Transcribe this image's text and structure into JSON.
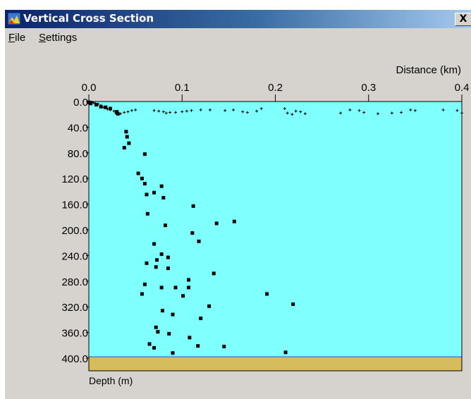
{
  "window": {
    "title": "Vertical Cross Section",
    "close_glyph": "X",
    "icon": "cross-section-app-icon"
  },
  "menu": {
    "items": [
      {
        "first": "F",
        "rest": "ile"
      },
      {
        "first": "S",
        "rest": "ettings"
      }
    ]
  },
  "colors": {
    "plot_background": "#80ffff",
    "seabed": "#d7bc5e",
    "title_bar_start": "#0a246a",
    "title_bar_end": "#a6caf0",
    "window_face": "#d6d3ce"
  },
  "chart_data": {
    "type": "scatter",
    "xlabel": "Distance (km)",
    "ylabel": "Depth (m)",
    "xlim": [
      0.0,
      0.4
    ],
    "ylim": [
      0.0,
      400.0
    ],
    "x_ticks": [
      "0.0",
      "0.1",
      "0.2",
      "0.3",
      "0.4"
    ],
    "y_ticks": [
      "0.0",
      "40.0",
      "80.0",
      "120.0",
      "160.0",
      "200.0",
      "240.0",
      "280.0",
      "320.0",
      "360.0",
      "400.0"
    ],
    "x_tick_values": [
      0.0,
      0.1,
      0.2,
      0.3,
      0.4
    ],
    "y_tick_values": [
      0,
      40,
      80,
      120,
      160,
      200,
      240,
      280,
      320,
      360,
      400
    ],
    "seabed_depth": 398,
    "grid": false,
    "surface_points": [
      [
        0.003,
        1
      ],
      [
        0.005,
        2
      ],
      [
        0.007,
        3
      ],
      [
        0.01,
        4
      ],
      [
        0.013,
        6
      ],
      [
        0.016,
        9
      ],
      [
        0.02,
        12
      ],
      [
        0.023,
        13
      ],
      [
        0.027,
        15
      ],
      [
        0.029,
        18
      ],
      [
        0.03,
        19
      ],
      [
        0.032,
        20
      ],
      [
        0.034,
        19
      ],
      [
        0.038,
        17
      ],
      [
        0.042,
        16
      ],
      [
        0.046,
        14
      ],
      [
        0.05,
        13
      ],
      [
        0.07,
        14
      ],
      [
        0.075,
        15
      ],
      [
        0.08,
        16
      ],
      [
        0.083,
        18
      ],
      [
        0.087,
        17
      ],
      [
        0.093,
        17
      ],
      [
        0.1,
        16
      ],
      [
        0.105,
        15
      ],
      [
        0.11,
        14
      ],
      [
        0.12,
        13
      ],
      [
        0.13,
        13
      ],
      [
        0.146,
        14
      ],
      [
        0.155,
        13
      ],
      [
        0.165,
        16
      ],
      [
        0.17,
        17
      ],
      [
        0.18,
        15
      ],
      [
        0.185,
        11
      ],
      [
        0.21,
        11
      ],
      [
        0.213,
        18
      ],
      [
        0.218,
        20
      ],
      [
        0.222,
        15
      ],
      [
        0.227,
        16
      ],
      [
        0.232,
        19
      ],
      [
        0.27,
        18
      ],
      [
        0.28,
        13
      ],
      [
        0.29,
        14
      ],
      [
        0.295,
        17
      ],
      [
        0.31,
        19
      ],
      [
        0.325,
        18
      ],
      [
        0.335,
        17
      ],
      [
        0.345,
        13
      ],
      [
        0.35,
        14
      ],
      [
        0.38,
        13
      ],
      [
        0.395,
        14
      ],
      [
        0.4,
        18
      ]
    ],
    "deep_points": [
      [
        0.0,
        1
      ],
      [
        0.002,
        3
      ],
      [
        0.008,
        5
      ],
      [
        0.013,
        8
      ],
      [
        0.018,
        9
      ],
      [
        0.023,
        11
      ],
      [
        0.03,
        16
      ],
      [
        0.031,
        19
      ],
      [
        0.04,
        47
      ],
      [
        0.041,
        55
      ],
      [
        0.043,
        65
      ],
      [
        0.038,
        72
      ],
      [
        0.06,
        82
      ],
      [
        0.053,
        112
      ],
      [
        0.057,
        120
      ],
      [
        0.06,
        128
      ],
      [
        0.062,
        145
      ],
      [
        0.07,
        142
      ],
      [
        0.078,
        132
      ],
      [
        0.08,
        150
      ],
      [
        0.063,
        175
      ],
      [
        0.112,
        163
      ],
      [
        0.082,
        193
      ],
      [
        0.137,
        190
      ],
      [
        0.156,
        187
      ],
      [
        0.111,
        205
      ],
      [
        0.118,
        218
      ],
      [
        0.07,
        222
      ],
      [
        0.078,
        238
      ],
      [
        0.073,
        247
      ],
      [
        0.085,
        243
      ],
      [
        0.062,
        252
      ],
      [
        0.072,
        258
      ],
      [
        0.085,
        260
      ],
      [
        0.107,
        278
      ],
      [
        0.134,
        268
      ],
      [
        0.06,
        285
      ],
      [
        0.078,
        290
      ],
      [
        0.093,
        290
      ],
      [
        0.107,
        290
      ],
      [
        0.057,
        300
      ],
      [
        0.101,
        303
      ],
      [
        0.191,
        300
      ],
      [
        0.129,
        319
      ],
      [
        0.219,
        316
      ],
      [
        0.079,
        326
      ],
      [
        0.09,
        332
      ],
      [
        0.12,
        338
      ],
      [
        0.072,
        352
      ],
      [
        0.074,
        359
      ],
      [
        0.086,
        362
      ],
      [
        0.108,
        368
      ],
      [
        0.065,
        378
      ],
      [
        0.07,
        384
      ],
      [
        0.117,
        381
      ],
      [
        0.145,
        382
      ],
      [
        0.09,
        392
      ],
      [
        0.211,
        391
      ]
    ]
  }
}
